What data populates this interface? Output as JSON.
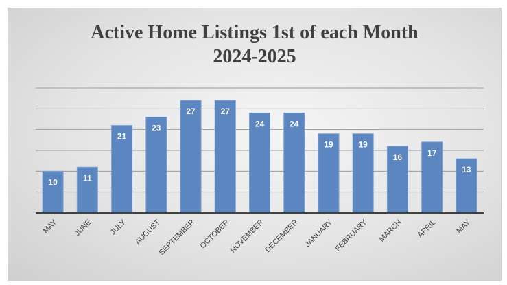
{
  "chart_data": {
    "type": "bar",
    "title": "Active Home Listings 1st of each Month",
    "subtitle": "2024-2025",
    "categories": [
      "MAY",
      "JUNE",
      "JULY",
      "AUGUST",
      "SEPTEMBER",
      "OCTOBER",
      "NOVEMBER",
      "DECEMBER",
      "JANUARY",
      "FEBRUARY",
      "MARCH",
      "APRIL",
      "MAY"
    ],
    "values": [
      10,
      11,
      21,
      23,
      27,
      27,
      24,
      24,
      19,
      19,
      16,
      17,
      13
    ],
    "ylim": [
      0,
      30
    ],
    "grid": true,
    "legend": "none",
    "colors": {
      "bar": "#5b86c0",
      "bar_edge": "#7aa0d2",
      "grid": "#9a9a9a",
      "axis": "#404040"
    }
  }
}
